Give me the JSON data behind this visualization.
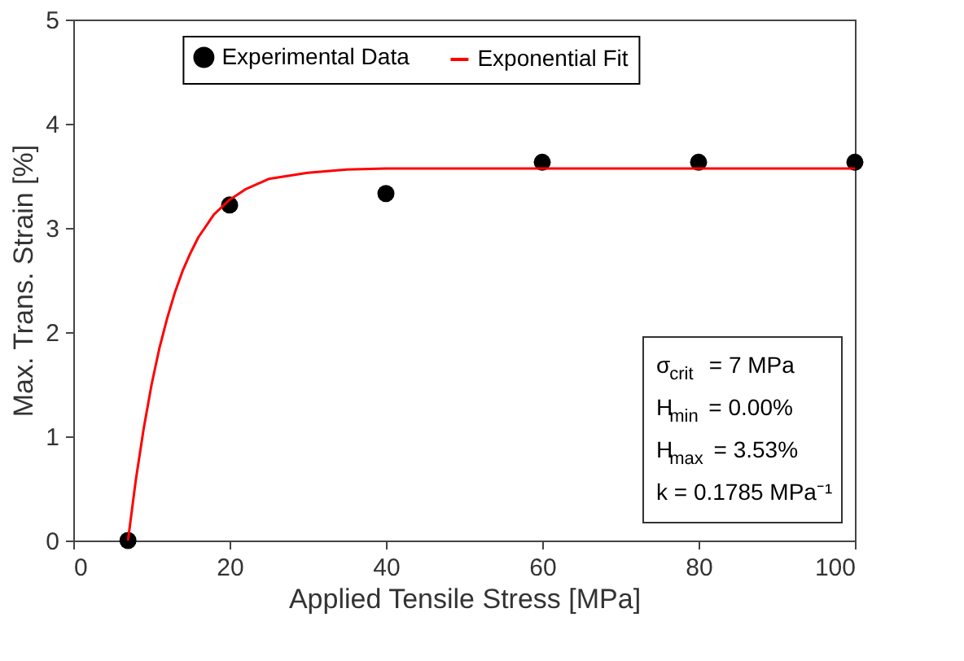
{
  "chart_data": {
    "type": "scatter",
    "xlabel": "Applied Tensile Stress [MPa]",
    "ylabel": "Max. Trans. Strain [%]",
    "xlim": [
      0,
      100
    ],
    "ylim": [
      0,
      5
    ],
    "xticks": [
      0,
      20,
      40,
      60,
      80,
      100
    ],
    "yticks": [
      0,
      1,
      2,
      3,
      4,
      5
    ],
    "grid": false,
    "legend": "top",
    "series": [
      {
        "name": "Experimental Data",
        "type": "scatter",
        "color": "#000000",
        "marker": "circle",
        "x": [
          7,
          20,
          40,
          60,
          80,
          100
        ],
        "values": [
          0,
          3.22,
          3.33,
          3.63,
          3.63,
          3.63
        ]
      },
      {
        "name": "Exponential Fit",
        "type": "line",
        "color": "#ff0000",
        "line_style": "solid",
        "x": [
          7,
          8,
          9,
          10,
          11,
          12,
          13,
          14,
          15,
          16,
          18,
          20,
          22,
          25,
          30,
          35,
          40,
          60,
          80,
          100
        ],
        "values": [
          0,
          0.58,
          1.07,
          1.49,
          1.84,
          2.13,
          2.38,
          2.59,
          2.76,
          2.91,
          3.13,
          3.27,
          3.37,
          3.47,
          3.53,
          3.56,
          3.57,
          3.57,
          3.57,
          3.57
        ]
      }
    ],
    "annotations": [
      "σ$_{crit}$ = 7 MPa",
      "H$_{min}$ = 0.00%",
      "H$_{max}$ = 3.53%",
      "k = 0.1785 MPa⁻¹"
    ]
  }
}
